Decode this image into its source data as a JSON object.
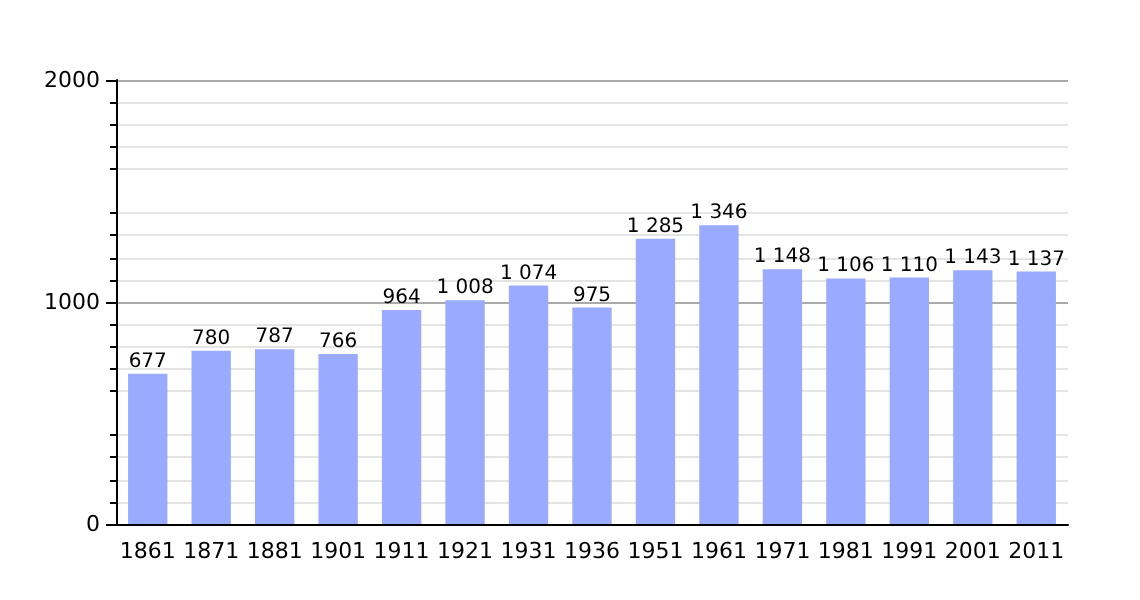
{
  "chart_data": {
    "type": "bar",
    "categories": [
      "1861",
      "1871",
      "1881",
      "1901",
      "1911",
      "1921",
      "1931",
      "1936",
      "1951",
      "1961",
      "1971",
      "1981",
      "1991",
      "2001",
      "2011"
    ],
    "values": [
      677,
      780,
      787,
      766,
      964,
      1008,
      1074,
      975,
      1285,
      1346,
      1148,
      1106,
      1110,
      1143,
      1137
    ],
    "value_labels": [
      "677",
      "780",
      "787",
      "766",
      "964",
      "1 008",
      "1 074",
      "975",
      "1 285",
      "1 346",
      "1 148",
      "1 106",
      "1 110",
      "1 143",
      "1 137"
    ],
    "color": "#99aaff",
    "ylim": [
      0,
      2000
    ],
    "yticks": [
      0,
      1000,
      2000
    ],
    "grid": "y"
  }
}
